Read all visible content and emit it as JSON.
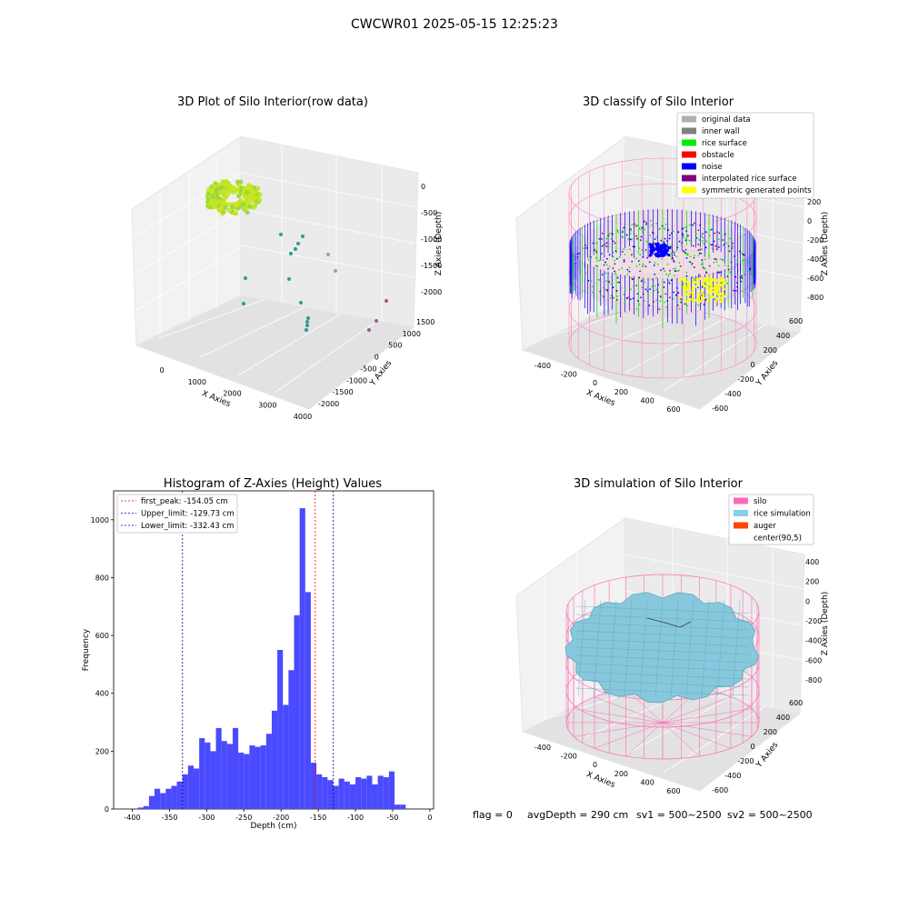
{
  "figure_title": "CWCWR01 2025-05-15 12:25:23",
  "footer": {
    "flag": "flag = 0",
    "avg_depth": "avgDepth = 290 cm",
    "sv1": "sv1 = 500~2500",
    "sv2": "sv2 = 500~2500"
  },
  "chart_data": [
    {
      "type": "scatter",
      "id": "raw",
      "title": "3D Plot of Silo Interior(row data)",
      "xlabel": "X Axies",
      "ylabel": "Y Axies",
      "zlabel": "Z Axies (Depth)",
      "x_ticks": [
        "0",
        "1000",
        "2000",
        "3000",
        "4000"
      ],
      "y_ticks": [
        "-2000",
        "-1500",
        "-1000",
        "-500",
        "0",
        "500",
        "1000",
        "1500"
      ],
      "z_ticks": [
        "-2000",
        "-1500",
        "-1000",
        "-500",
        "0"
      ],
      "cluster_color": "#c8e61e",
      "outlier_color": "#2a9d8f"
    },
    {
      "type": "scatter",
      "id": "classify",
      "title": "3D classify of Silo Interior",
      "xlabel": "X Axies",
      "ylabel": "Y Axies",
      "zlabel": "Z Axies (Depth)",
      "x_ticks": [
        "-400",
        "-200",
        "0",
        "200",
        "400",
        "600"
      ],
      "y_ticks": [
        "-600",
        "-400",
        "-200",
        "0",
        "200",
        "400",
        "600"
      ],
      "z_ticks": [
        "-800",
        "-600",
        "-400",
        "-200",
        "0",
        "200"
      ],
      "legend": [
        {
          "label": "original data",
          "color": "#b0b0b0"
        },
        {
          "label": "inner wall",
          "color": "#808080"
        },
        {
          "label": "rice surface",
          "color": "#00ee00"
        },
        {
          "label": "obstacle",
          "color": "#ff0000"
        },
        {
          "label": "noise",
          "color": "#0000ff"
        },
        {
          "label": "interpolated rice surface",
          "color": "#800080"
        },
        {
          "label": "symmetric generated points",
          "color": "#ffff00"
        }
      ],
      "cylinder_color": "#ff80c0"
    },
    {
      "type": "bar",
      "id": "hist",
      "title": "Histogram of Z-Axies (Height) Values",
      "xlabel": "Depth (cm)",
      "ylabel": "Frequency",
      "xlim": [
        -425,
        5
      ],
      "ylim": [
        0,
        1100
      ],
      "x_ticks": [
        -400,
        -350,
        -300,
        -250,
        -200,
        -150,
        -100,
        -50,
        0
      ],
      "y_ticks": [
        0,
        200,
        400,
        600,
        800,
        1000
      ],
      "bin_start": -400,
      "bin_width": 7.5,
      "values": [
        0,
        5,
        10,
        45,
        70,
        55,
        70,
        80,
        95,
        120,
        150,
        140,
        245,
        230,
        200,
        280,
        235,
        225,
        280,
        195,
        190,
        220,
        215,
        220,
        260,
        340,
        550,
        360,
        480,
        670,
        1040,
        750,
        160,
        120,
        110,
        100,
        80,
        105,
        95,
        85,
        110,
        105,
        115,
        85,
        115,
        110,
        130,
        15,
        15
      ],
      "bar_color": "#4a4aff",
      "lines": [
        {
          "label": "first_peak: -154.05 cm",
          "value": -154.05,
          "color": "#ff0000"
        },
        {
          "label": "Upper_limit: -129.73 cm",
          "value": -129.73,
          "color": "#0000a0"
        },
        {
          "label": "Lower_limit: -332.43 cm",
          "value": -332.43,
          "color": "#0000a0"
        }
      ]
    },
    {
      "type": "area",
      "id": "sim",
      "title": "3D simulation of Silo Interior",
      "xlabel": "X Axies",
      "ylabel": "Y Axies",
      "zlabel": "Z Axies (Depth)",
      "x_ticks": [
        "-400",
        "-200",
        "0",
        "200",
        "400",
        "600"
      ],
      "y_ticks": [
        "-600",
        "-400",
        "-200",
        "0",
        "200",
        "400",
        "600"
      ],
      "z_ticks": [
        "-800",
        "-600",
        "-400",
        "-200",
        "0",
        "200",
        "400"
      ],
      "legend": [
        {
          "label": "silo",
          "color": "#ff69b4"
        },
        {
          "label": "rice simulation",
          "color": "#87cee6"
        },
        {
          "label": "auger",
          "color": "#ff4500"
        },
        {
          "label": "center(90,5)",
          "color": "#ffffff"
        }
      ],
      "surface_color": "#87c8dc"
    }
  ]
}
